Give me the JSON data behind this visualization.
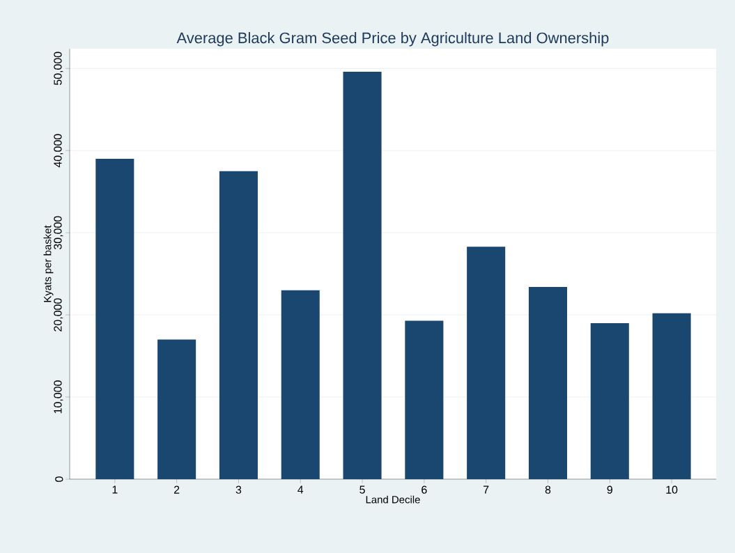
{
  "chart_data": {
    "type": "bar",
    "title": "Average Black Gram Seed Price by Agriculture Land Ownership",
    "xlabel": "Land Decile",
    "ylabel": "Kyats per basket",
    "categories": [
      "1",
      "2",
      "3",
      "4",
      "5",
      "6",
      "7",
      "8",
      "9",
      "10"
    ],
    "values": [
      39000,
      17000,
      37500,
      23000,
      49600,
      19300,
      28300,
      23400,
      19000,
      20200
    ],
    "color": "#1a476f",
    "ylim": [
      0,
      52400
    ],
    "yticks": [
      {
        "value": 0,
        "label": "0"
      },
      {
        "value": 10000,
        "label": "10,000"
      },
      {
        "value": 20000,
        "label": "20,000"
      },
      {
        "value": 30000,
        "label": "30,000"
      },
      {
        "value": 40000,
        "label": "40,000"
      },
      {
        "value": 50000,
        "label": "50,000"
      }
    ],
    "grid": "y"
  }
}
